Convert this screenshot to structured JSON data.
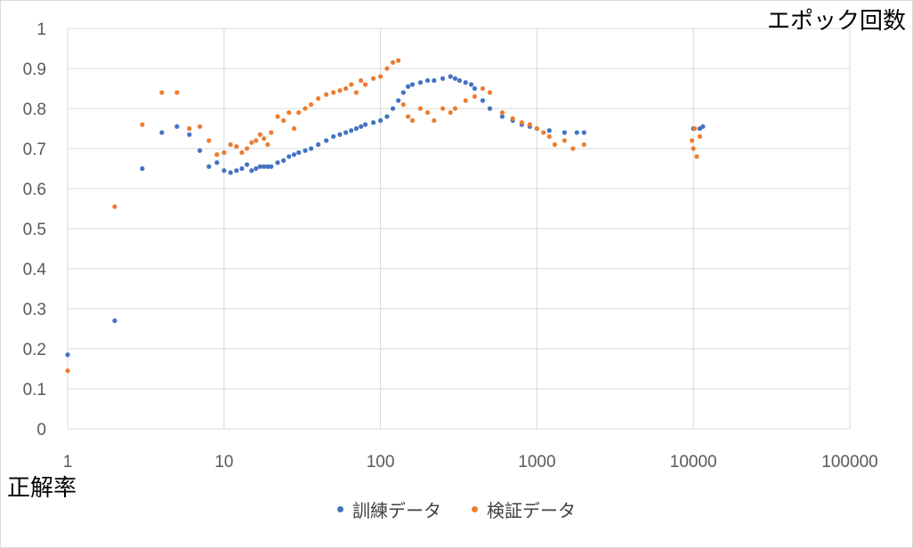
{
  "chart_data": {
    "type": "scatter",
    "xlabel": "エポック回数",
    "ylabel": "正解率",
    "xscale": "log",
    "xlim": [
      1,
      100000
    ],
    "ylim": [
      0,
      1
    ],
    "x_ticks": [
      "1",
      "10",
      "100",
      "1000",
      "10000",
      "100000"
    ],
    "y_ticks": [
      "0",
      "0.1",
      "0.2",
      "0.3",
      "0.4",
      "0.5",
      "0.6",
      "0.7",
      "0.8",
      "0.9",
      "1"
    ],
    "grid": true,
    "legend_position": "bottom",
    "series": [
      {
        "name": "訓練データ",
        "color": "#4472C4",
        "points": [
          [
            1,
            0.185
          ],
          [
            2,
            0.27
          ],
          [
            3,
            0.65
          ],
          [
            4,
            0.74
          ],
          [
            5,
            0.755
          ],
          [
            6,
            0.735
          ],
          [
            7,
            0.695
          ],
          [
            8,
            0.655
          ],
          [
            9,
            0.665
          ],
          [
            10,
            0.645
          ],
          [
            11,
            0.64
          ],
          [
            12,
            0.645
          ],
          [
            13,
            0.65
          ],
          [
            14,
            0.66
          ],
          [
            15,
            0.645
          ],
          [
            16,
            0.65
          ],
          [
            17,
            0.655
          ],
          [
            18,
            0.655
          ],
          [
            19,
            0.655
          ],
          [
            20,
            0.655
          ],
          [
            22,
            0.665
          ],
          [
            24,
            0.67
          ],
          [
            26,
            0.68
          ],
          [
            28,
            0.685
          ],
          [
            30,
            0.69
          ],
          [
            33,
            0.695
          ],
          [
            36,
            0.7
          ],
          [
            40,
            0.71
          ],
          [
            45,
            0.72
          ],
          [
            50,
            0.73
          ],
          [
            55,
            0.735
          ],
          [
            60,
            0.74
          ],
          [
            65,
            0.745
          ],
          [
            70,
            0.75
          ],
          [
            75,
            0.755
          ],
          [
            80,
            0.76
          ],
          [
            90,
            0.765
          ],
          [
            100,
            0.77
          ],
          [
            110,
            0.78
          ],
          [
            120,
            0.8
          ],
          [
            130,
            0.82
          ],
          [
            140,
            0.84
          ],
          [
            150,
            0.855
          ],
          [
            160,
            0.86
          ],
          [
            180,
            0.865
          ],
          [
            200,
            0.87
          ],
          [
            220,
            0.87
          ],
          [
            250,
            0.875
          ],
          [
            280,
            0.88
          ],
          [
            300,
            0.875
          ],
          [
            320,
            0.87
          ],
          [
            350,
            0.865
          ],
          [
            380,
            0.86
          ],
          [
            400,
            0.85
          ],
          [
            450,
            0.82
          ],
          [
            500,
            0.8
          ],
          [
            600,
            0.78
          ],
          [
            700,
            0.77
          ],
          [
            800,
            0.76
          ],
          [
            900,
            0.755
          ],
          [
            1000,
            0.75
          ],
          [
            1200,
            0.745
          ],
          [
            1500,
            0.74
          ],
          [
            1800,
            0.74
          ],
          [
            2000,
            0.74
          ],
          [
            10000,
            0.75
          ],
          [
            11000,
            0.75
          ],
          [
            11500,
            0.755
          ]
        ]
      },
      {
        "name": "検証データ",
        "color": "#ED7D31",
        "points": [
          [
            1,
            0.145
          ],
          [
            2,
            0.555
          ],
          [
            3,
            0.76
          ],
          [
            4,
            0.84
          ],
          [
            5,
            0.84
          ],
          [
            6,
            0.75
          ],
          [
            7,
            0.755
          ],
          [
            8,
            0.72
          ],
          [
            9,
            0.685
          ],
          [
            10,
            0.69
          ],
          [
            11,
            0.71
          ],
          [
            12,
            0.705
          ],
          [
            13,
            0.69
          ],
          [
            14,
            0.7
          ],
          [
            15,
            0.715
          ],
          [
            16,
            0.72
          ],
          [
            17,
            0.735
          ],
          [
            18,
            0.725
          ],
          [
            19,
            0.71
          ],
          [
            20,
            0.74
          ],
          [
            22,
            0.78
          ],
          [
            24,
            0.77
          ],
          [
            26,
            0.79
          ],
          [
            28,
            0.75
          ],
          [
            30,
            0.79
          ],
          [
            33,
            0.8
          ],
          [
            36,
            0.81
          ],
          [
            40,
            0.825
          ],
          [
            45,
            0.835
          ],
          [
            50,
            0.84
          ],
          [
            55,
            0.845
          ],
          [
            60,
            0.85
          ],
          [
            65,
            0.86
          ],
          [
            70,
            0.84
          ],
          [
            75,
            0.87
          ],
          [
            80,
            0.86
          ],
          [
            90,
            0.875
          ],
          [
            100,
            0.88
          ],
          [
            110,
            0.9
          ],
          [
            120,
            0.915
          ],
          [
            130,
            0.92
          ],
          [
            140,
            0.81
          ],
          [
            150,
            0.78
          ],
          [
            160,
            0.77
          ],
          [
            180,
            0.8
          ],
          [
            200,
            0.79
          ],
          [
            220,
            0.77
          ],
          [
            250,
            0.8
          ],
          [
            280,
            0.79
          ],
          [
            300,
            0.8
          ],
          [
            350,
            0.82
          ],
          [
            400,
            0.83
          ],
          [
            450,
            0.85
          ],
          [
            500,
            0.84
          ],
          [
            600,
            0.79
          ],
          [
            700,
            0.775
          ],
          [
            800,
            0.765
          ],
          [
            900,
            0.76
          ],
          [
            1000,
            0.75
          ],
          [
            1100,
            0.74
          ],
          [
            1200,
            0.73
          ],
          [
            1300,
            0.71
          ],
          [
            1500,
            0.72
          ],
          [
            1700,
            0.7
          ],
          [
            2000,
            0.71
          ],
          [
            9800,
            0.72
          ],
          [
            10000,
            0.7
          ],
          [
            10200,
            0.75
          ],
          [
            10500,
            0.68
          ],
          [
            11000,
            0.73
          ]
        ]
      }
    ]
  }
}
